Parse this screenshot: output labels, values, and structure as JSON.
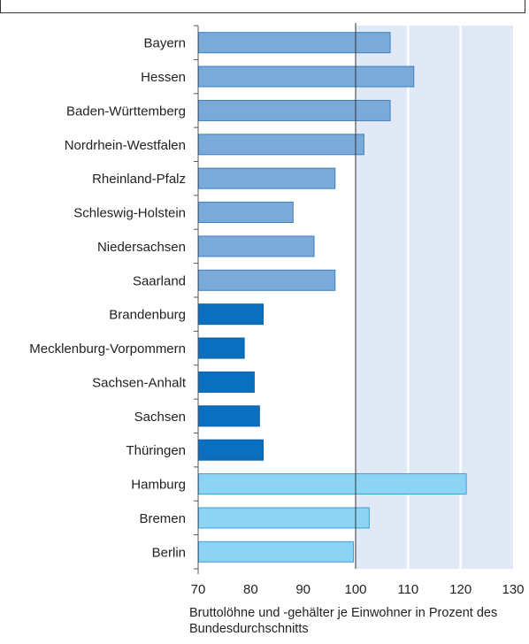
{
  "chart_data": {
    "type": "bar",
    "orientation": "horizontal",
    "categories": [
      "Bayern",
      "Hessen",
      "Baden-Württemberg",
      "Nordrhein-Westfalen",
      "Rheinland-Pfalz",
      "Schleswig-Holstein",
      "Niedersachsen",
      "Saarland",
      "Brandenburg",
      "Mecklenburg-Vorpommern",
      "Sachsen-Anhalt",
      "Sachsen",
      "Thüringen",
      "Hamburg",
      "Bremen",
      "Berlin"
    ],
    "values": [
      106.5,
      111,
      106.5,
      101.5,
      96,
      88,
      92,
      96,
      82.3,
      78.7,
      80.6,
      81.6,
      82.3,
      121,
      102.5,
      99.5
    ],
    "groups": [
      "west",
      "west",
      "west",
      "west",
      "west",
      "west",
      "west",
      "west",
      "east",
      "east",
      "east",
      "east",
      "east",
      "city",
      "city",
      "city"
    ],
    "colors": {
      "west": "#7aabd8",
      "east": "#0a6fbf",
      "city": "#8dd3f3"
    },
    "edge_colors": {
      "west": "#3d7fbf",
      "east": "#0a5fa8",
      "city": "#3a9fd8"
    },
    "xlim": [
      70,
      130
    ],
    "xticks": [
      70,
      80,
      90,
      100,
      110,
      120,
      130
    ],
    "reference_line": 100,
    "grid": true,
    "background_band_color": "#e2e9f6",
    "xlabel": "Bruttolöhne und -gehälter je Einwohner in Prozent des Bundesdurchschnitts"
  }
}
